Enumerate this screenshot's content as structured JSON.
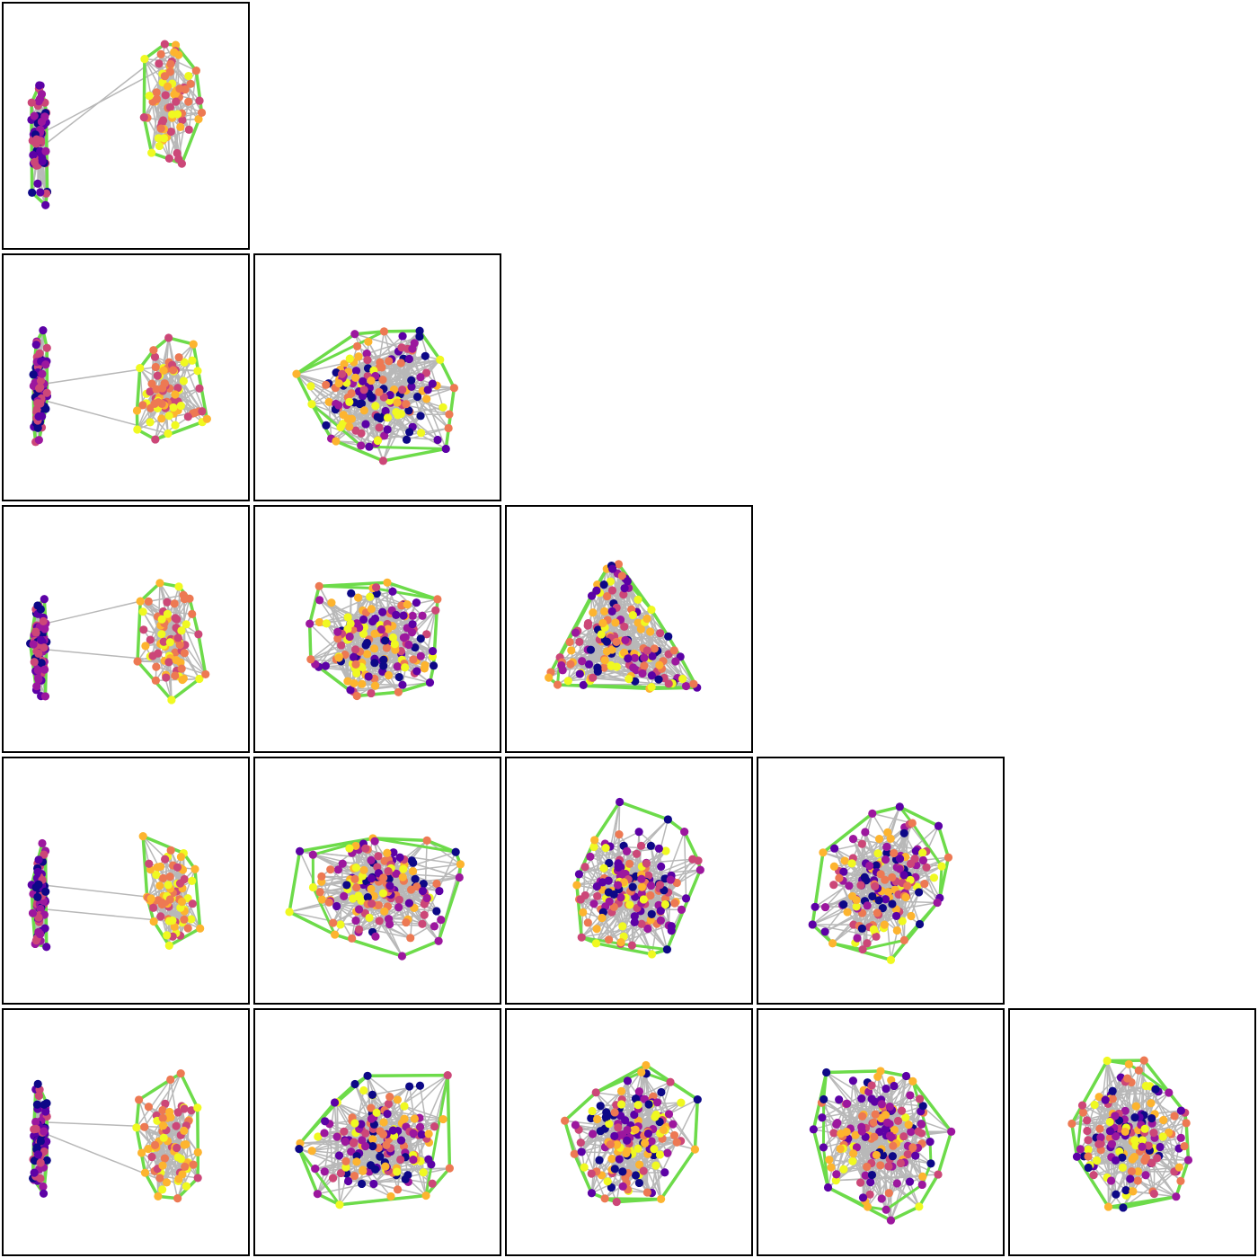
{
  "figure": {
    "type": "pairwise-projection-matrix",
    "rows": 5,
    "layout": "lower-triangular",
    "panels_per_row": [
      1,
      2,
      3,
      4,
      5
    ]
  },
  "colors": {
    "panel_border": "#000000",
    "edge": "#b8b8b8",
    "hull": "#6ddb4a",
    "node_colormap": [
      "#0d0887",
      "#5c01a6",
      "#9c179e",
      "#cc4778",
      "#ed7953",
      "#fdb42f",
      "#f0f921"
    ]
  }
}
